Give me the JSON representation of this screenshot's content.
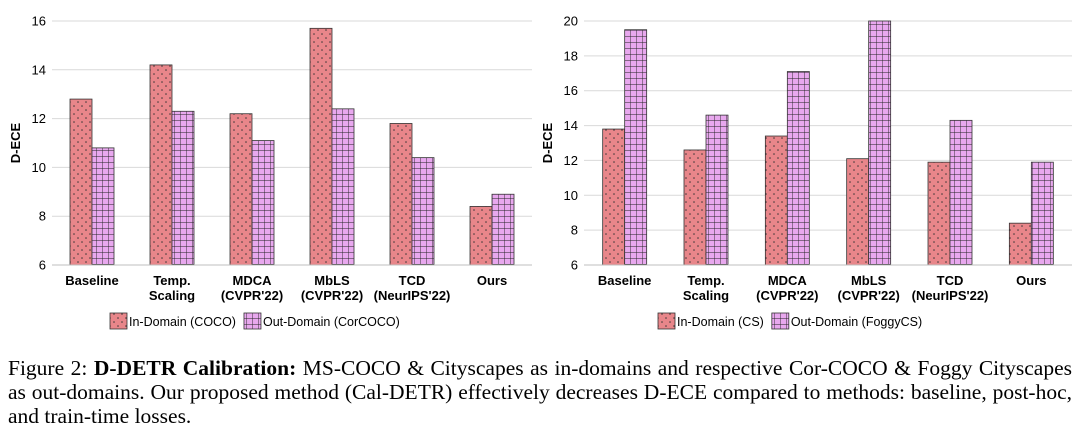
{
  "colors": {
    "in_domain": "#E8868A",
    "out_domain": "#E8A8EE",
    "grid": "#d9d9d9"
  },
  "chart_data": [
    {
      "type": "bar",
      "categories": [
        [
          "Baseline"
        ],
        [
          "Temp.",
          "Scaling"
        ],
        [
          "MDCA",
          "(CVPR'22)"
        ],
        [
          "MbLS",
          "(CVPR'22)"
        ],
        [
          "TCD",
          "(NeurIPS'22)"
        ],
        [
          "Ours"
        ]
      ],
      "series": [
        {
          "name": "In-Domain (COCO)",
          "values": [
            12.8,
            14.2,
            12.2,
            15.7,
            11.8,
            8.4
          ]
        },
        {
          "name": "Out-Domain (CorCOCO)",
          "values": [
            10.8,
            12.3,
            11.1,
            12.4,
            10.4,
            8.9
          ]
        }
      ],
      "ylabel": "D-ECE",
      "ylim": [
        6,
        16
      ],
      "yticks": [
        6,
        8,
        10,
        12,
        14,
        16
      ],
      "grid": true,
      "legend": "bottom"
    },
    {
      "type": "bar",
      "categories": [
        [
          "Baseline"
        ],
        [
          "Temp.",
          "Scaling"
        ],
        [
          "MDCA",
          "(CVPR'22)"
        ],
        [
          "MbLS",
          "(CVPR'22)"
        ],
        [
          "TCD",
          "(NeurIPS'22)"
        ],
        [
          "Ours"
        ]
      ],
      "series": [
        {
          "name": "In-Domain (CS)",
          "values": [
            13.8,
            12.6,
            13.4,
            12.1,
            11.9,
            8.4
          ]
        },
        {
          "name": "Out-Domain (FoggyCS)",
          "values": [
            19.5,
            14.6,
            17.1,
            20.0,
            14.3,
            11.9
          ]
        }
      ],
      "ylabel": "D-ECE",
      "ylim": [
        6,
        20
      ],
      "yticks": [
        6,
        8,
        10,
        12,
        14,
        16,
        18,
        20
      ],
      "grid": true,
      "legend": "bottom"
    }
  ],
  "caption": {
    "prefix": "Figure 2: ",
    "bold": "D-DETR Calibration:",
    "text": " MS-COCO & Cityscapes as in-domains and respective Cor-COCO & Foggy Cityscapes as out-domains.  Our proposed method (Cal-DETR) effectively decreases D-ECE compared to methods: baseline, post-hoc, and train-time losses."
  }
}
